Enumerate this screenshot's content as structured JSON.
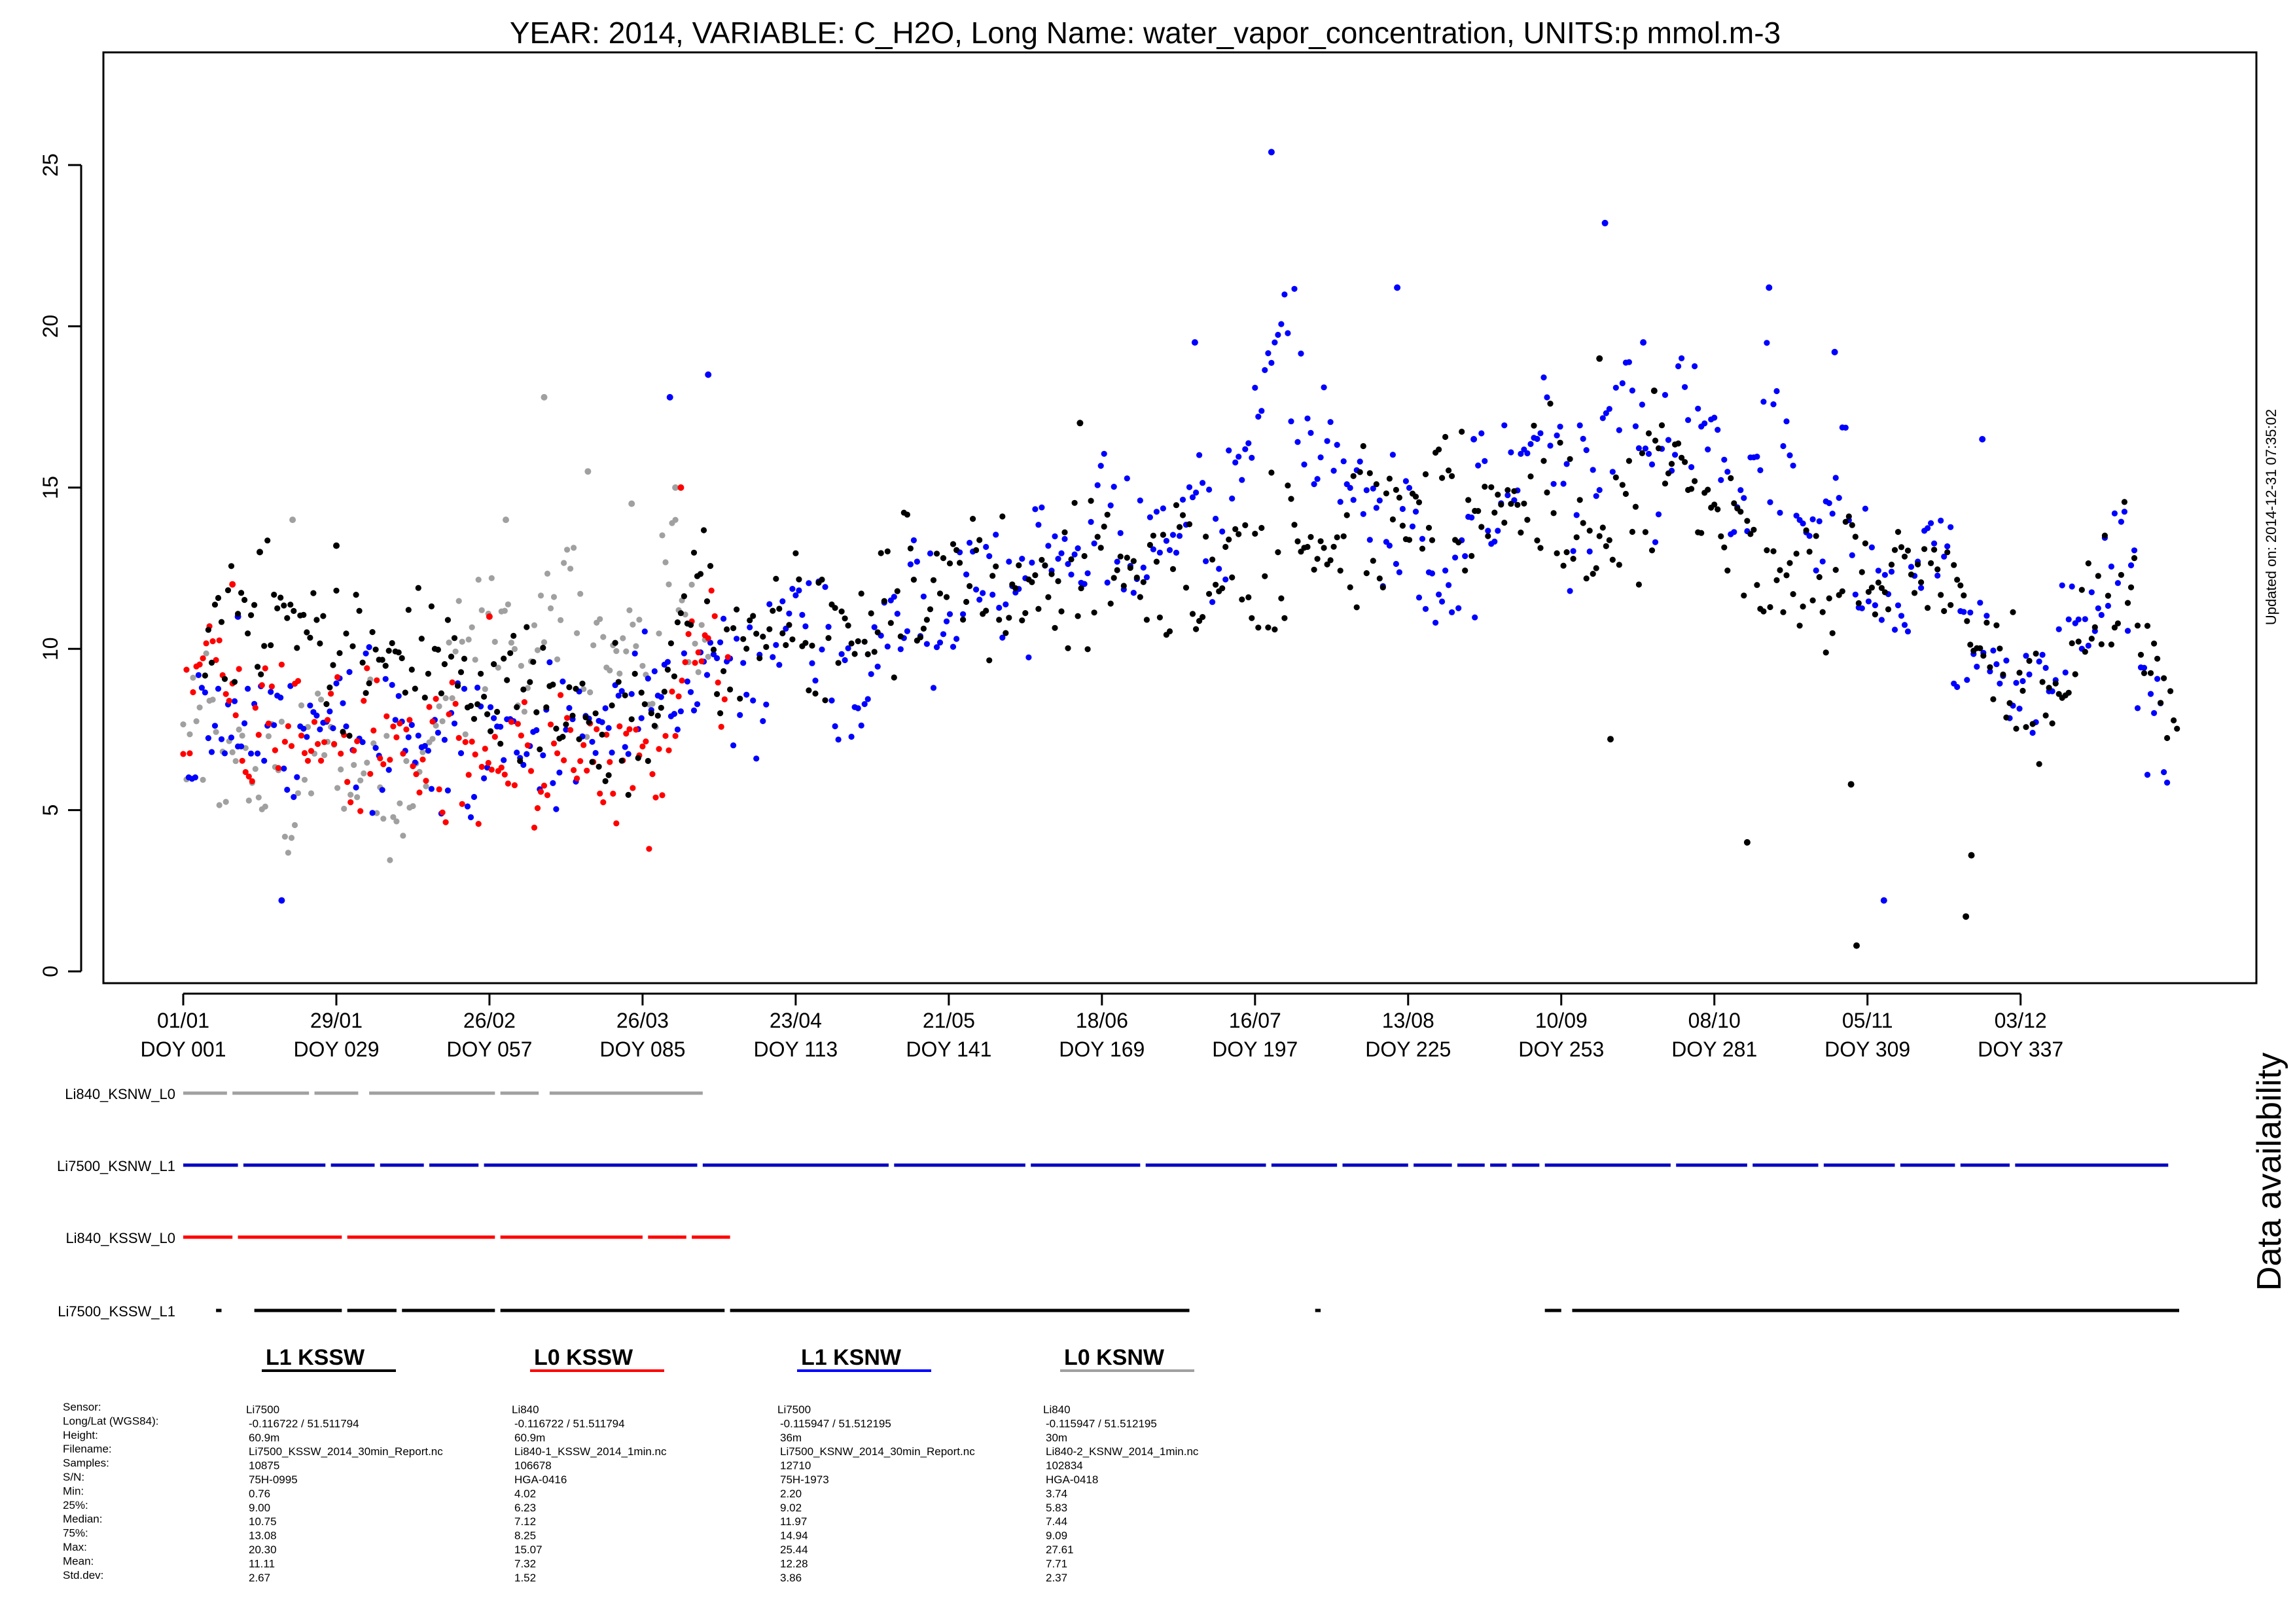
{
  "chart_data": {
    "type": "scatter",
    "title": "YEAR: 2014, VARIABLE: C_H2O, Long Name: water_vapor_concentration, UNITS:p mmol.m-3",
    "updated_label": "Updated on: 2014-12-31 07:35:02",
    "side_label": "Data availability",
    "xlim": [
      1,
      366
    ],
    "ylim": [
      0,
      27.6
    ],
    "y_ticks": [
      "0",
      "5",
      "10",
      "15",
      "20",
      "25"
    ],
    "x_ticks": [
      {
        "date": "01/01",
        "doy": "DOY 001"
      },
      {
        "date": "29/01",
        "doy": "DOY 029"
      },
      {
        "date": "26/02",
        "doy": "DOY 057"
      },
      {
        "date": "26/03",
        "doy": "DOY 085"
      },
      {
        "date": "23/04",
        "doy": "DOY 113"
      },
      {
        "date": "21/05",
        "doy": "DOY 141"
      },
      {
        "date": "18/06",
        "doy": "DOY 169"
      },
      {
        "date": "16/07",
        "doy": "DOY 197"
      },
      {
        "date": "13/08",
        "doy": "DOY 225"
      },
      {
        "date": "10/09",
        "doy": "DOY 253"
      },
      {
        "date": "08/10",
        "doy": "DOY 281"
      },
      {
        "date": "05/11",
        "doy": "DOY 309"
      },
      {
        "date": "03/12",
        "doy": "DOY 337"
      }
    ],
    "series": [
      {
        "name": "Li840_KSNW_L0",
        "color": "#a0a0a0",
        "x_range": [
          1,
          97
        ],
        "level": [
          [
            1,
            7.0
          ],
          [
            3,
            6.5
          ],
          [
            5,
            8.0
          ],
          [
            8,
            5.5
          ],
          [
            10,
            7.5
          ],
          [
            13,
            6.0
          ],
          [
            16,
            5.5
          ],
          [
            18,
            6.8
          ],
          [
            21,
            5.0
          ],
          [
            24,
            6.5
          ],
          [
            26,
            7.5
          ],
          [
            29,
            6.5
          ],
          [
            31,
            5.5
          ],
          [
            34,
            6.5
          ],
          [
            36,
            7.5
          ],
          [
            39,
            6.0
          ],
          [
            41,
            5.5
          ],
          [
            43,
            5.0
          ],
          [
            45,
            6.5
          ],
          [
            47,
            7.5
          ],
          [
            49,
            8.5
          ],
          [
            51,
            10.0
          ],
          [
            53,
            9.5
          ],
          [
            55,
            10.5
          ],
          [
            57,
            9.5
          ],
          [
            59,
            11.0
          ],
          [
            61,
            10.0
          ],
          [
            63,
            8.5
          ],
          [
            65,
            10.0
          ],
          [
            67,
            11.0
          ],
          [
            69,
            12.0
          ],
          [
            71,
            11.5
          ],
          [
            73,
            10.0
          ],
          [
            75,
            9.5
          ],
          [
            77,
            10.5
          ],
          [
            79,
            9.0
          ],
          [
            81,
            10.0
          ],
          [
            83,
            11.0
          ],
          [
            85,
            10.0
          ],
          [
            87,
            9.0
          ],
          [
            89,
            11.5
          ],
          [
            91,
            12.5
          ],
          [
            93,
            11.0
          ],
          [
            95,
            10.5
          ],
          [
            97,
            10.5
          ]
        ],
        "spikes": [
          [
            21,
            14.0
          ],
          [
            60,
            14.0
          ],
          [
            67,
            17.8
          ],
          [
            75,
            15.5
          ],
          [
            83,
            14.5
          ],
          [
            91,
            15.0
          ]
        ]
      },
      {
        "name": "Li7500_KSNW_L1",
        "color": "#0000ff",
        "x_range": [
          2,
          364
        ],
        "level": [
          [
            2,
            8.0
          ],
          [
            10,
            7.5
          ],
          [
            20,
            7.5
          ],
          [
            30,
            8.0
          ],
          [
            40,
            7.0
          ],
          [
            50,
            6.5
          ],
          [
            57,
            7.0
          ],
          [
            65,
            7.5
          ],
          [
            75,
            7.5
          ],
          [
            85,
            8.0
          ],
          [
            92,
            9.0
          ],
          [
            100,
            9.0
          ],
          [
            105,
            8.5
          ],
          [
            110,
            10.5
          ],
          [
            115,
            11.5
          ],
          [
            120,
            9.5
          ],
          [
            125,
            9.0
          ],
          [
            130,
            11.0
          ],
          [
            135,
            12.0
          ],
          [
            140,
            11.0
          ],
          [
            145,
            12.5
          ],
          [
            150,
            12.0
          ],
          [
            155,
            12.0
          ],
          [
            160,
            13.5
          ],
          [
            165,
            12.0
          ],
          [
            170,
            14.0
          ],
          [
            175,
            13.5
          ],
          [
            180,
            13.5
          ],
          [
            185,
            14.0
          ],
          [
            190,
            13.5
          ],
          [
            195,
            15.5
          ],
          [
            200,
            20.0
          ],
          [
            204,
            19.5
          ],
          [
            208,
            17.0
          ],
          [
            212,
            15.5
          ],
          [
            218,
            14.5
          ],
          [
            224,
            14.0
          ],
          [
            230,
            11.5
          ],
          [
            235,
            12.0
          ],
          [
            240,
            15.0
          ],
          [
            245,
            15.5
          ],
          [
            250,
            17.5
          ],
          [
            255,
            14.0
          ],
          [
            260,
            15.0
          ],
          [
            265,
            18.5
          ],
          [
            270,
            14.5
          ],
          [
            275,
            17.0
          ],
          [
            280,
            17.0
          ],
          [
            285,
            14.0
          ],
          [
            290,
            17.5
          ],
          [
            295,
            15.0
          ],
          [
            300,
            13.0
          ],
          [
            305,
            15.0
          ],
          [
            310,
            12.0
          ],
          [
            315,
            11.0
          ],
          [
            320,
            12.5
          ],
          [
            325,
            11.5
          ],
          [
            330,
            10.5
          ],
          [
            335,
            9.0
          ],
          [
            340,
            9.0
          ],
          [
            345,
            10.5
          ],
          [
            350,
            11.0
          ],
          [
            355,
            14.0
          ],
          [
            360,
            8.5
          ],
          [
            364,
            7.0
          ]
        ],
        "spikes": [
          [
            11,
            11.0
          ],
          [
            90,
            17.8
          ],
          [
            97,
            18.5
          ],
          [
            186,
            19.5
          ],
          [
            200,
            25.4
          ],
          [
            223,
            21.2
          ],
          [
            237,
            16.5
          ],
          [
            261,
            23.2
          ],
          [
            268,
            19.5
          ],
          [
            291,
            21.2
          ],
          [
            303,
            19.2
          ],
          [
            330,
            16.5
          ],
          [
            312,
            2.2
          ],
          [
            19,
            2.2
          ]
        ]
      },
      {
        "name": "Li840_KSSW_L0",
        "color": "#ff0000",
        "x_range": [
          1,
          101
        ],
        "level": [
          [
            1,
            7.5
          ],
          [
            4,
            9.0
          ],
          [
            7,
            10.5
          ],
          [
            10,
            9.0
          ],
          [
            13,
            8.0
          ],
          [
            16,
            7.5
          ],
          [
            19,
            8.5
          ],
          [
            22,
            8.0
          ],
          [
            25,
            7.0
          ],
          [
            28,
            7.5
          ],
          [
            31,
            7.0
          ],
          [
            34,
            7.5
          ],
          [
            37,
            7.0
          ],
          [
            40,
            7.5
          ],
          [
            43,
            7.0
          ],
          [
            46,
            6.5
          ],
          [
            49,
            6.5
          ],
          [
            52,
            6.5
          ],
          [
            55,
            6.0
          ],
          [
            58,
            6.5
          ],
          [
            61,
            7.0
          ],
          [
            64,
            6.5
          ],
          [
            67,
            7.5
          ],
          [
            70,
            7.5
          ],
          [
            73,
            7.0
          ],
          [
            76,
            7.0
          ],
          [
            79,
            6.0
          ],
          [
            82,
            5.0
          ],
          [
            85,
            5.5
          ],
          [
            88,
            6.5
          ],
          [
            91,
            8.0
          ],
          [
            94,
            10.0
          ],
          [
            97,
            10.0
          ],
          [
            100,
            9.0
          ],
          [
            101,
            9.0
          ]
        ],
        "spikes": [
          [
            92,
            15.0
          ],
          [
            10,
            12.0
          ],
          [
            57,
            11.0
          ]
        ]
      },
      {
        "name": "Li7500_KSSW_L1",
        "color": "#000000",
        "x_range": [
          5,
          366
        ],
        "level": [
          [
            5,
            10.0
          ],
          [
            15,
            11.5
          ],
          [
            25,
            10.5
          ],
          [
            35,
            9.5
          ],
          [
            45,
            10.0
          ],
          [
            55,
            8.5
          ],
          [
            65,
            8.5
          ],
          [
            75,
            8.0
          ],
          [
            85,
            7.5
          ],
          [
            92,
            10.0
          ],
          [
            95,
            12.5
          ],
          [
            100,
            9.5
          ],
          [
            110,
            11.0
          ],
          [
            120,
            10.0
          ],
          [
            130,
            11.5
          ],
          [
            140,
            12.5
          ],
          [
            150,
            12.0
          ],
          [
            160,
            12.0
          ],
          [
            170,
            12.5
          ],
          [
            180,
            12.0
          ],
          [
            185,
            12.5
          ],
          [
            252,
            15.0
          ],
          [
            258,
            13.0
          ],
          [
            265,
            14.0
          ],
          [
            270,
            15.5
          ],
          [
            275,
            15.5
          ],
          [
            282,
            13.5
          ],
          [
            290,
            12.0
          ],
          [
            298,
            12.0
          ],
          [
            305,
            13.0
          ],
          [
            312,
            11.5
          ],
          [
            320,
            12.5
          ],
          [
            328,
            11.0
          ],
          [
            335,
            9.0
          ],
          [
            340,
            8.0
          ],
          [
            345,
            9.0
          ],
          [
            350,
            11.0
          ],
          [
            356,
            13.0
          ],
          [
            360,
            10.0
          ],
          [
            364,
            8.0
          ],
          [
            366,
            8.0
          ]
        ],
        "spikes": [
          [
            15,
            13.0
          ],
          [
            29,
            13.2
          ],
          [
            165,
            17.0
          ],
          [
            260,
            19.0
          ],
          [
            270,
            18.0
          ],
          [
            287,
            4.0
          ],
          [
            307,
            0.8
          ],
          [
            327,
            1.7
          ],
          [
            328,
            3.6
          ],
          [
            306,
            5.8
          ],
          [
            262,
            7.2
          ]
        ]
      }
    ]
  },
  "availability": {
    "rows": [
      {
        "label": "Li840_KSNW_L0",
        "color": "#a0a0a0",
        "segments": [
          [
            1,
            9
          ],
          [
            10,
            24
          ],
          [
            25,
            33
          ],
          [
            35,
            58
          ],
          [
            59,
            66
          ],
          [
            68,
            96
          ]
        ]
      },
      {
        "label": "Li7500_KSNW_L1",
        "color": "#0000c0",
        "segments": [
          [
            1,
            11
          ],
          [
            12,
            27
          ],
          [
            28,
            36
          ],
          [
            37,
            45
          ],
          [
            46,
            55
          ],
          [
            56,
            95
          ],
          [
            96,
            130
          ],
          [
            131,
            155
          ],
          [
            156,
            176
          ],
          [
            177,
            199
          ],
          [
            200,
            212
          ],
          [
            213,
            225
          ],
          [
            226,
            233
          ],
          [
            234,
            239
          ],
          [
            240,
            243
          ],
          [
            244,
            249
          ],
          [
            250,
            273
          ],
          [
            274,
            287
          ],
          [
            288,
            300
          ],
          [
            301,
            314
          ],
          [
            315,
            325
          ],
          [
            326,
            335
          ],
          [
            336,
            364
          ]
        ]
      },
      {
        "label": "Li840_KSSW_L0",
        "color": "#ff0000",
        "segments": [
          [
            1,
            10
          ],
          [
            11,
            30
          ],
          [
            31,
            58
          ],
          [
            59,
            85
          ],
          [
            86,
            93
          ],
          [
            94,
            101
          ]
        ]
      },
      {
        "label": "Li7500_KSSW_L1",
        "color": "#000000",
        "segments": [
          [
            7,
            8
          ],
          [
            14,
            30
          ],
          [
            31,
            40
          ],
          [
            41,
            58
          ],
          [
            59,
            100
          ],
          [
            101,
            185
          ],
          [
            208,
            209
          ],
          [
            250,
            253
          ],
          [
            255,
            366
          ]
        ]
      }
    ]
  },
  "legend": [
    {
      "label": "L1 KSSW",
      "color": "#000000"
    },
    {
      "label": "L0 KSSW",
      "color": "#ff0000"
    },
    {
      "label": "L1 KSNW",
      "color": "#0000ff"
    },
    {
      "label": "L0 KSNW",
      "color": "#a0a0a0"
    }
  ],
  "stats": {
    "row_labels": [
      "Sensor:",
      "Long/Lat (WGS84):",
      "Height:",
      "Filename:",
      "Samples:",
      "S/N:",
      "Min:",
      "25%:",
      "Median:",
      "75%:",
      "Max:",
      "Mean:",
      "Std.dev:"
    ],
    "columns": [
      [
        "Li7500",
        "-0.116722 / 51.511794",
        "60.9m",
        "Li7500_KSSW_2014_30min_Report.nc",
        "10875",
        "75H-0995",
        "0.76",
        "9.00",
        "10.75",
        "13.08",
        "20.30",
        "11.11",
        "2.67"
      ],
      [
        "Li840",
        "-0.116722 / 51.511794",
        "60.9m",
        "Li840-1_KSSW_2014_1min.nc",
        "106678",
        "HGA-0416",
        "4.02",
        "6.23",
        "7.12",
        "8.25",
        "15.07",
        "7.32",
        "1.52"
      ],
      [
        "Li7500",
        "-0.115947 / 51.512195",
        "36m",
        "Li7500_KSNW_2014_30min_Report.nc",
        "12710",
        "75H-1973",
        "2.20",
        "9.02",
        "11.97",
        "14.94",
        "25.44",
        "12.28",
        "3.86"
      ],
      [
        "Li840",
        "-0.115947 / 51.512195",
        "30m",
        "Li840-2_KSNW_2014_1min.nc",
        "102834",
        "HGA-0418",
        "3.74",
        "5.83",
        "7.44",
        "9.09",
        "27.61",
        "7.71",
        "2.37"
      ]
    ]
  }
}
